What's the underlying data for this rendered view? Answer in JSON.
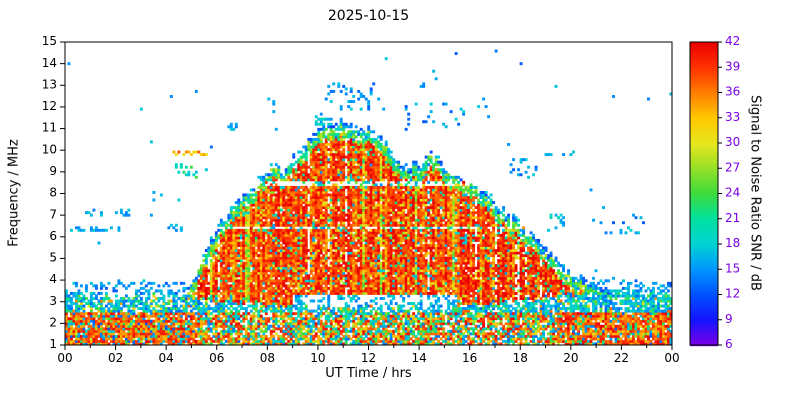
{
  "chart_data": {
    "type": "heatmap",
    "title": "2025-10-15",
    "xlabel": "UT Time / hrs",
    "ylabel": "Frequency / MHz",
    "xlim": [
      0,
      24
    ],
    "ylim": [
      1,
      15
    ],
    "xticks": {
      "values": [
        0,
        2,
        4,
        6,
        8,
        10,
        12,
        14,
        16,
        18,
        20,
        22,
        24
      ],
      "labels": [
        "00",
        "02",
        "04",
        "06",
        "08",
        "10",
        "12",
        "14",
        "16",
        "18",
        "20",
        "22",
        "00"
      ]
    },
    "xminor_step": 1,
    "yticks": {
      "values": [
        1,
        2,
        3,
        4,
        5,
        6,
        7,
        8,
        9,
        10,
        11,
        12,
        13,
        14,
        15
      ],
      "labels": [
        "1",
        "2",
        "3",
        "4",
        "5",
        "6",
        "7",
        "8",
        "9",
        "10",
        "11",
        "12",
        "13",
        "14",
        "15"
      ]
    },
    "colorbar": {
      "label": "Signal to Noise Ratio SNR / dB",
      "min": 6,
      "max": 42,
      "ticks": [
        6,
        9,
        12,
        15,
        18,
        21,
        24,
        27,
        30,
        33,
        36,
        39,
        42
      ]
    },
    "colormap": [
      {
        "v": 6,
        "c": "#7a00e6"
      },
      {
        "v": 9,
        "c": "#1414ff"
      },
      {
        "v": 12,
        "c": "#0050ff"
      },
      {
        "v": 15,
        "c": "#0096ff"
      },
      {
        "v": 18,
        "c": "#00d2d2"
      },
      {
        "v": 21,
        "c": "#00e0a0"
      },
      {
        "v": 24,
        "c": "#3cdc3c"
      },
      {
        "v": 27,
        "c": "#96e028"
      },
      {
        "v": 30,
        "c": "#e6e61e"
      },
      {
        "v": 33,
        "c": "#ffc800"
      },
      {
        "v": 36,
        "c": "#ff7d00"
      },
      {
        "v": 39,
        "c": "#ff3200"
      },
      {
        "v": 42,
        "c": "#ea0000"
      }
    ],
    "envelope": {
      "t": [
        0,
        4.5,
        5,
        5.5,
        6,
        6.5,
        7,
        7.5,
        8,
        8.3,
        8.6,
        9,
        9.5,
        10,
        10.4,
        11,
        11.5,
        12,
        12.4,
        12.8,
        13.2,
        13.6,
        14,
        14.4,
        14.8,
        15.2,
        16,
        16.5,
        17,
        17.5,
        18,
        18.5,
        19,
        19.5,
        20,
        20.5,
        21,
        22,
        23,
        24
      ],
      "fmax": [
        2.8,
        2.8,
        3.8,
        5.2,
        6.4,
        7.3,
        8.0,
        8.4,
        9.2,
        9.4,
        9.0,
        9.6,
        10.3,
        10.9,
        11.2,
        11.3,
        11.0,
        11.2,
        10.9,
        10.2,
        9.6,
        9.3,
        9.4,
        9.8,
        9.6,
        9.0,
        8.6,
        8.2,
        7.6,
        7.1,
        6.6,
        6.1,
        5.4,
        4.9,
        4.4,
        4.0,
        3.7,
        3.3,
        3.1,
        3.0
      ]
    },
    "baseline_top": {
      "t": [
        0,
        3,
        5,
        7,
        9,
        12,
        15,
        17,
        19,
        21,
        24
      ],
      "f": [
        3.3,
        3.3,
        3.2,
        3.0,
        2.8,
        2.7,
        2.8,
        3.0,
        3.3,
        3.5,
        3.4
      ]
    },
    "interference_lines": [
      6.45,
      8.45
    ],
    "midday_gap": {
      "t0": 9,
      "t1": 15.5,
      "f0": 2.45,
      "f1": 3.3
    },
    "snr_levels": {
      "core": [
        34,
        42
      ],
      "mid": [
        20,
        29
      ],
      "edge": [
        11,
        18
      ]
    },
    "speckle_clusters": [
      {
        "t0": 0.2,
        "t1": 2.2,
        "f0": 6.25,
        "f1": 6.5,
        "d": 0.5,
        "vmin": 14,
        "vmax": 18
      },
      {
        "t0": 0.8,
        "t1": 2.6,
        "f0": 6.9,
        "f1": 7.3,
        "d": 0.22,
        "vmin": 14,
        "vmax": 18
      },
      {
        "t0": 3.3,
        "t1": 4.1,
        "f0": 7.6,
        "f1": 8.1,
        "d": 0.2,
        "vmin": 14,
        "vmax": 18
      },
      {
        "t0": 4.2,
        "t1": 5.6,
        "f0": 9.7,
        "f1": 10.0,
        "d": 0.55,
        "vmin": 30,
        "vmax": 38
      },
      {
        "t0": 4.3,
        "t1": 5.3,
        "f0": 8.7,
        "f1": 9.4,
        "d": 0.3,
        "vmin": 17,
        "vmax": 25
      },
      {
        "t0": 4.0,
        "t1": 4.6,
        "f0": 6.2,
        "f1": 6.6,
        "d": 0.25,
        "vmin": 14,
        "vmax": 18
      },
      {
        "t0": 6.3,
        "t1": 6.8,
        "f0": 10.9,
        "f1": 11.3,
        "d": 0.35,
        "vmin": 14,
        "vmax": 18
      },
      {
        "t0": 7.9,
        "t1": 8.3,
        "f0": 12.1,
        "f1": 12.4,
        "d": 0.3,
        "vmin": 14,
        "vmax": 18
      },
      {
        "t0": 9.9,
        "t1": 10.6,
        "f0": 11.2,
        "f1": 11.7,
        "d": 0.3,
        "vmin": 14,
        "vmax": 20
      },
      {
        "t0": 10.3,
        "t1": 12.6,
        "f0": 11.9,
        "f1": 13.1,
        "d": 0.12,
        "vmin": 12,
        "vmax": 18
      },
      {
        "t0": 11.2,
        "t1": 11.6,
        "f0": 12.9,
        "f1": 13.15,
        "d": 0.5,
        "vmin": 14,
        "vmax": 18
      },
      {
        "t0": 13.4,
        "t1": 15.6,
        "f0": 10.8,
        "f1": 12.2,
        "d": 0.09,
        "vmin": 12,
        "vmax": 18
      },
      {
        "t0": 13.9,
        "t1": 14.3,
        "f0": 12.9,
        "f1": 13.1,
        "d": 0.3,
        "vmin": 14,
        "vmax": 18
      },
      {
        "t0": 15.4,
        "t1": 15.8,
        "f0": 11.6,
        "f1": 12.0,
        "d": 0.3,
        "vmin": 14,
        "vmax": 18
      },
      {
        "t0": 16.3,
        "t1": 16.9,
        "f0": 12.0,
        "f1": 12.4,
        "d": 0.25,
        "vmin": 14,
        "vmax": 18
      },
      {
        "t0": 17.4,
        "t1": 18.7,
        "f0": 8.4,
        "f1": 9.6,
        "d": 0.18,
        "vmin": 12,
        "vmax": 18
      },
      {
        "t0": 19.0,
        "t1": 20.2,
        "f0": 9.7,
        "f1": 10.0,
        "d": 0.25,
        "vmin": 14,
        "vmax": 18
      },
      {
        "t0": 19.2,
        "t1": 19.8,
        "f0": 6.4,
        "f1": 7.1,
        "d": 0.3,
        "vmin": 14,
        "vmax": 20
      },
      {
        "t0": 20.8,
        "t1": 23.3,
        "f0": 6.1,
        "f1": 7.0,
        "d": 0.07,
        "vmin": 12,
        "vmax": 18
      },
      {
        "t0": 19.8,
        "t1": 24.0,
        "f0": 3.3,
        "f1": 3.9,
        "d": 0.18,
        "vmin": 12,
        "vmax": 18
      },
      {
        "t0": 0.0,
        "t1": 5.0,
        "f0": 3.3,
        "f1": 3.9,
        "d": 0.15,
        "vmin": 12,
        "vmax": 18
      }
    ]
  }
}
